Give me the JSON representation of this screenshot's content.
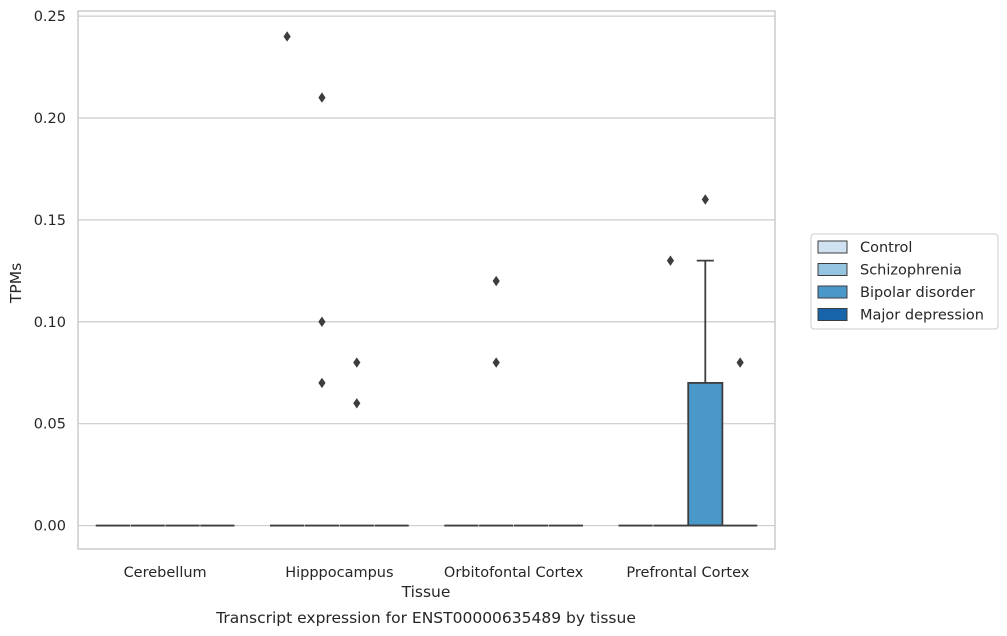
{
  "chart_data": {
    "type": "box",
    "title": "",
    "caption": "Transcript expression for ENST00000635489 by tissue",
    "xlabel": "Tissue",
    "ylabel": "TPMs",
    "ylim": [
      -0.0115,
      0.2525
    ],
    "yticks": [
      "0.00",
      "0.05",
      "0.10",
      "0.15",
      "0.20",
      "0.25"
    ],
    "ytick_values": [
      0,
      0.05,
      0.1,
      0.15,
      0.2,
      0.25
    ],
    "grid": true,
    "legend_position": "right",
    "categories": [
      "Cerebellum",
      "Hipppocampus",
      "Orbitofontal Cortex",
      "Prefrontal Cortex"
    ],
    "series": [
      {
        "name": "Control",
        "color": "#d0e1f2",
        "boxes": [
          {
            "q1": 0,
            "median": 0,
            "q3": 0,
            "whisker_low": 0,
            "whisker_high": 0,
            "outliers": []
          },
          {
            "q1": 0,
            "median": 0,
            "q3": 0,
            "whisker_low": 0,
            "whisker_high": 0,
            "outliers": [
              0.24
            ]
          },
          {
            "q1": 0,
            "median": 0,
            "q3": 0,
            "whisker_low": 0,
            "whisker_high": 0,
            "outliers": []
          },
          {
            "q1": 0,
            "median": 0,
            "q3": 0,
            "whisker_low": 0,
            "whisker_high": 0,
            "outliers": []
          }
        ]
      },
      {
        "name": "Schizophrenia",
        "color": "#94c4df",
        "boxes": [
          {
            "q1": 0,
            "median": 0,
            "q3": 0,
            "whisker_low": 0,
            "whisker_high": 0,
            "outliers": []
          },
          {
            "q1": 0,
            "median": 0,
            "q3": 0,
            "whisker_low": 0,
            "whisker_high": 0,
            "outliers": [
              0.21,
              0.1,
              0.07
            ]
          },
          {
            "q1": 0,
            "median": 0,
            "q3": 0,
            "whisker_low": 0,
            "whisker_high": 0,
            "outliers": [
              0.12,
              0.08
            ]
          },
          {
            "q1": 0,
            "median": 0,
            "q3": 0,
            "whisker_low": 0,
            "whisker_high": 0,
            "outliers": [
              0.13
            ]
          }
        ]
      },
      {
        "name": "Bipolar disorder",
        "color": "#4a98c9",
        "boxes": [
          {
            "q1": 0,
            "median": 0,
            "q3": 0,
            "whisker_low": 0,
            "whisker_high": 0,
            "outliers": []
          },
          {
            "q1": 0,
            "median": 0,
            "q3": 0,
            "whisker_low": 0,
            "whisker_high": 0,
            "outliers": [
              0.08,
              0.06
            ]
          },
          {
            "q1": 0,
            "median": 0,
            "q3": 0,
            "whisker_low": 0,
            "whisker_high": 0,
            "outliers": []
          },
          {
            "q1": 0,
            "median": 0,
            "q3": 0.07,
            "whisker_low": 0,
            "whisker_high": 0.13,
            "outliers": [
              0.16
            ]
          }
        ]
      },
      {
        "name": "Major depression",
        "color": "#1764ab",
        "boxes": [
          {
            "q1": 0,
            "median": 0,
            "q3": 0,
            "whisker_low": 0,
            "whisker_high": 0,
            "outliers": []
          },
          {
            "q1": 0,
            "median": 0,
            "q3": 0,
            "whisker_low": 0,
            "whisker_high": 0,
            "outliers": []
          },
          {
            "q1": 0,
            "median": 0,
            "q3": 0,
            "whisker_low": 0,
            "whisker_high": 0,
            "outliers": []
          },
          {
            "q1": 0,
            "median": 0,
            "q3": 0,
            "whisker_low": 0,
            "whisker_high": 0,
            "outliers": [
              0.08
            ]
          }
        ]
      }
    ]
  }
}
